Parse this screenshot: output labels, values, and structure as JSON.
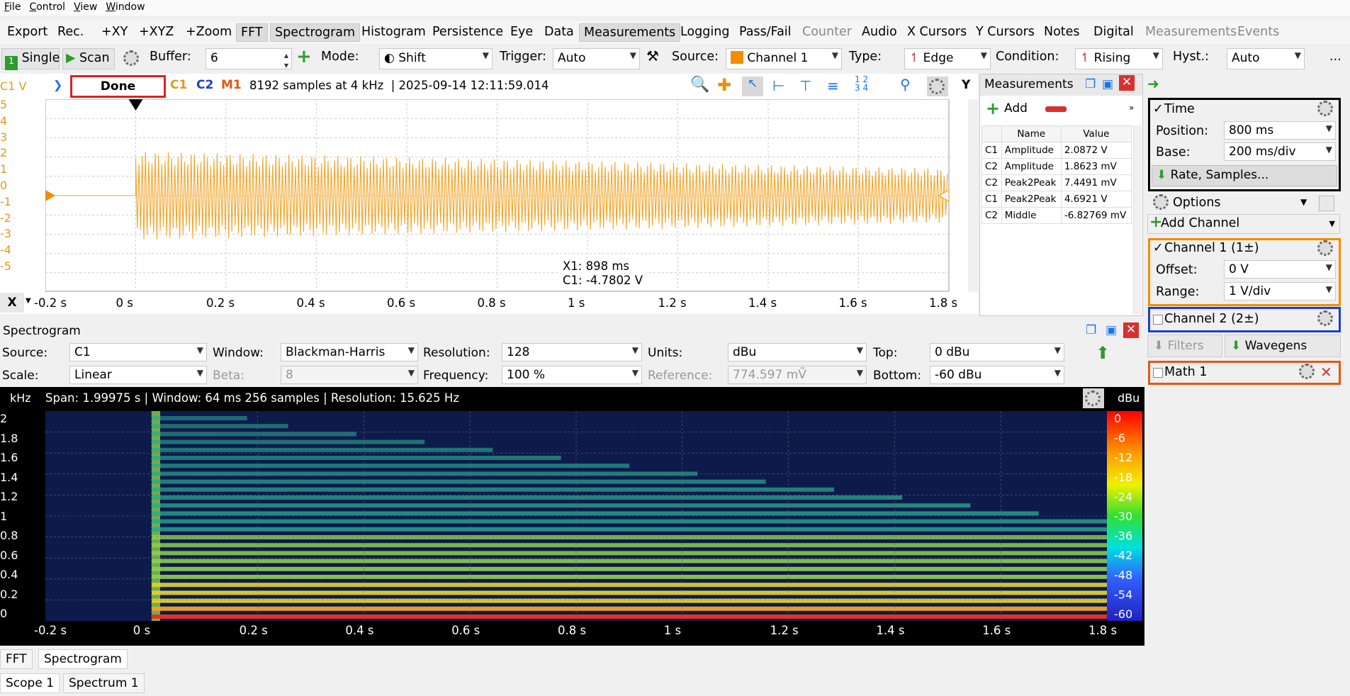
{
  "menu": [
    "File",
    "Control",
    "View",
    "Window"
  ],
  "tabs": [
    {
      "label": "Export",
      "dim": false,
      "active": false
    },
    {
      "label": "Rec.",
      "dim": false,
      "active": false
    },
    {
      "label": "+XY",
      "dim": false,
      "active": false
    },
    {
      "label": "+XYZ",
      "dim": false,
      "active": false
    },
    {
      "label": "+Zoom",
      "dim": false,
      "active": false
    },
    {
      "label": "FFT",
      "dim": false,
      "active": true
    },
    {
      "label": "Spectrogram",
      "dim": false,
      "active": true
    },
    {
      "label": "Histogram",
      "dim": false,
      "active": false
    },
    {
      "label": "Persistence",
      "dim": false,
      "active": false
    },
    {
      "label": "Eye",
      "dim": false,
      "active": false
    },
    {
      "label": "Data",
      "dim": false,
      "active": false
    },
    {
      "label": "Measurements",
      "dim": false,
      "active": true
    },
    {
      "label": "Logging",
      "dim": false,
      "active": false
    },
    {
      "label": "Pass/Fail",
      "dim": false,
      "active": false
    },
    {
      "label": "Counter",
      "dim": true,
      "active": false
    },
    {
      "label": "Audio",
      "dim": false,
      "active": false
    },
    {
      "label": "X Cursors",
      "dim": false,
      "active": false
    },
    {
      "label": "Y Cursors",
      "dim": false,
      "active": false
    },
    {
      "label": "Notes",
      "dim": false,
      "active": false
    },
    {
      "label": "Digital",
      "dim": false,
      "active": false
    },
    {
      "label": "Measurements",
      "dim": true,
      "active": false
    },
    {
      "label": "Events",
      "dim": true,
      "active": false
    }
  ],
  "toolbar": {
    "single": "Single",
    "scan": "Scan",
    "buffer_label": "Buffer:",
    "buffer_value": "6",
    "mode_label": "Mode:",
    "mode_value": "Shift",
    "trigger_label": "Trigger:",
    "trigger_value": "Auto",
    "source_label": "Source:",
    "source_value": "Channel 1",
    "type_label": "Type:",
    "type_value": "Edge",
    "condition_label": "Condition:",
    "condition_value": "Rising",
    "hyst_label": "Hyst.:",
    "hyst_value": "Auto",
    "more": "..."
  },
  "scope": {
    "unit": "C1 V",
    "status": "Done",
    "c1": "C1",
    "c2": "C2",
    "m1": "M1",
    "info": "8192 samples at 4 kHz  | 2025-09-14 12:11:59.014",
    "y_ticks": [
      "5",
      "4",
      "3",
      "2",
      "1",
      "0",
      "-1",
      "-2",
      "-3",
      "-4",
      "-5"
    ],
    "x_label": "X",
    "x_ticks": [
      "-0.2 s",
      "0 s",
      "0.2 s",
      "0.4 s",
      "0.6 s",
      "0.8 s",
      "1 s",
      "1.2 s",
      "1.4 s",
      "1.6 s",
      "1.8 s"
    ],
    "cursor_x": "X1: 898 ms",
    "cursor_c1": "C1: -4.7802 V",
    "y_btn": "Y"
  },
  "measurements": {
    "title": "Measurements",
    "add": "Add",
    "col_name": "Name",
    "col_value": "Value",
    "rows": [
      {
        "ch": "C1",
        "name": "Amplitude",
        "value": "2.0872 V"
      },
      {
        "ch": "C2",
        "name": "Amplitude",
        "value": "1.8623 mV"
      },
      {
        "ch": "C2",
        "name": "Peak2Peak",
        "value": "7.4491 mV"
      },
      {
        "ch": "C1",
        "name": "Peak2Peak",
        "value": "4.6921 V"
      },
      {
        "ch": "C2",
        "name": "Middle",
        "value": "-6.82769 mV"
      }
    ]
  },
  "right": {
    "time": "Time",
    "position_label": "Position:",
    "position_value": "800 ms",
    "base_label": "Base:",
    "base_value": "200 ms/div",
    "rate": "Rate, Samples...",
    "options": "Options",
    "add_channel": "Add Channel",
    "ch1": "Channel 1 (1±)",
    "offset_label": "Offset:",
    "offset_value": "0 V",
    "range_label": "Range:",
    "range_value": "1 V/div",
    "ch2": "Channel 2 (2±)",
    "filters": "Filters",
    "wavegens": "Wavegens",
    "math": "Math 1"
  },
  "spectrogram": {
    "title": "Spectrogram",
    "source_label": "Source:",
    "source_value": "C1",
    "window_label": "Window:",
    "window_value": "Blackman-Harris",
    "resolution_label": "Resolution:",
    "resolution_value": "128",
    "units_label": "Units:",
    "units_value": "dBu",
    "top_label": "Top:",
    "top_value": "0 dBu",
    "scale_label": "Scale:",
    "scale_value": "Linear",
    "beta_label": "Beta:",
    "beta_value": "8",
    "frequency_label": "Frequency:",
    "frequency_value": "100 %",
    "reference_label": "Reference:",
    "reference_value": "774.597 mṼ",
    "bottom_label": "Bottom:",
    "bottom_value": "-60 dBu",
    "y_unit": "kHz",
    "info": "Span: 1.99975 s | Window: 64 ms 256 samples | Resolution: 15.625 Hz",
    "db_unit": "dBu",
    "y_ticks": [
      "2",
      "1.8",
      "1.6",
      "1.4",
      "1.2",
      "1",
      "0.8",
      "0.6",
      "0.4",
      "0.2",
      "0"
    ],
    "db_ticks": [
      "0",
      "-6",
      "-12",
      "-18",
      "-24",
      "-30",
      "-36",
      "-42",
      "-48",
      "-54",
      "-60"
    ],
    "x_ticks": [
      "-0.2 s",
      "0 s",
      "0.2 s",
      "0.4 s",
      "0.6 s",
      "0.8 s",
      "1 s",
      "1.2 s",
      "1.4 s",
      "1.6 s",
      "1.8 s"
    ]
  },
  "bottom_tabs": {
    "fft": "FFT",
    "spectrogram": "Spectrogram",
    "scope1": "Scope 1",
    "spectrum1": "Spectrum 1"
  }
}
